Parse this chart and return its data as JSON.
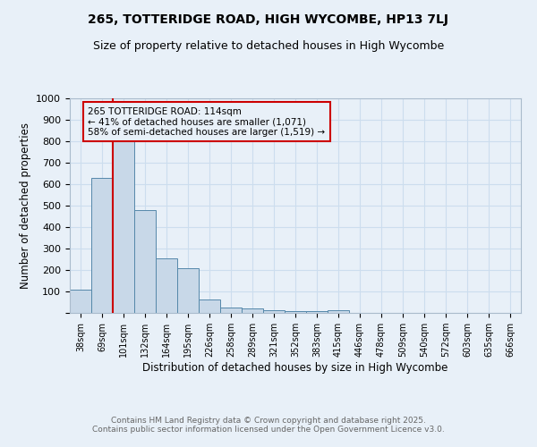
{
  "title1": "265, TOTTERIDGE ROAD, HIGH WYCOMBE, HP13 7LJ",
  "title2": "Size of property relative to detached houses in High Wycombe",
  "xlabel": "Distribution of detached houses by size in High Wycombe",
  "ylabel": "Number of detached properties",
  "categories": [
    "38sqm",
    "69sqm",
    "101sqm",
    "132sqm",
    "164sqm",
    "195sqm",
    "226sqm",
    "258sqm",
    "289sqm",
    "321sqm",
    "352sqm",
    "383sqm",
    "415sqm",
    "446sqm",
    "478sqm",
    "509sqm",
    "540sqm",
    "572sqm",
    "603sqm",
    "635sqm",
    "666sqm"
  ],
  "values": [
    110,
    630,
    810,
    480,
    255,
    210,
    62,
    27,
    20,
    14,
    10,
    7,
    12,
    0,
    0,
    0,
    0,
    0,
    0,
    0,
    0
  ],
  "bar_color": "#c8d8e8",
  "bar_edge_color": "#5588aa",
  "vline_color": "#cc0000",
  "annotation_text": "265 TOTTERIDGE ROAD: 114sqm\n← 41% of detached houses are smaller (1,071)\n58% of semi-detached houses are larger (1,519) →",
  "ylim": [
    0,
    1000
  ],
  "yticks": [
    0,
    100,
    200,
    300,
    400,
    500,
    600,
    700,
    800,
    900,
    1000
  ],
  "grid_color": "#ccddee",
  "background_color": "#e8f0f8",
  "footer1": "Contains HM Land Registry data © Crown copyright and database right 2025.",
  "footer2": "Contains public sector information licensed under the Open Government Licence v3.0."
}
